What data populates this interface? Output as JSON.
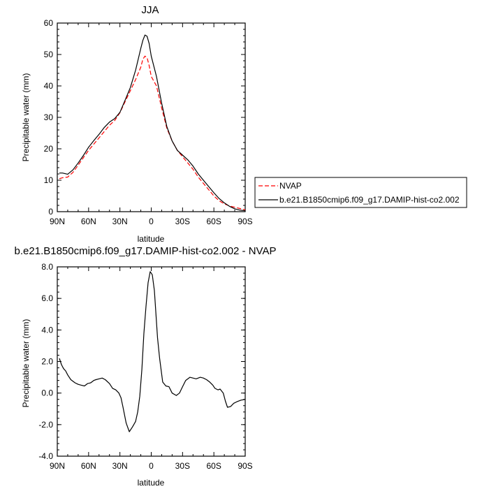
{
  "chart_data": [
    {
      "type": "line",
      "title": "JJA",
      "xlabel": "latitude",
      "ylabel": "Precipitable water (mm)",
      "xlim": [
        90,
        -90
      ],
      "ylim": [
        0,
        60
      ],
      "xticks": [
        90,
        60,
        30,
        0,
        -30,
        -60,
        -90
      ],
      "xtick_labels": [
        "90N",
        "60N",
        "30N",
        "0",
        "30S",
        "60S",
        "90S"
      ],
      "yticks": [
        0,
        10,
        20,
        30,
        40,
        50,
        60
      ],
      "ytick_labels": [
        "0",
        "10",
        "20",
        "30",
        "40",
        "50",
        "60"
      ],
      "legend_position": "right",
      "grid": false,
      "series": [
        {
          "name": "NVAP",
          "color": "#ff0000",
          "dash": "dashed",
          "x": [
            88,
            85,
            80,
            75,
            70,
            65,
            60,
            55,
            50,
            45,
            40,
            35,
            30,
            25,
            20,
            15,
            10,
            8,
            6,
            4,
            2,
            0,
            -5,
            -10,
            -15,
            -20,
            -25,
            -30,
            -35,
            -40,
            -45,
            -50,
            -55,
            -60,
            -65,
            -70,
            -75,
            -80,
            -85,
            -90
          ],
          "y": [
            10.5,
            10.8,
            11.0,
            12.5,
            14.8,
            17.2,
            19.5,
            21.5,
            23.5,
            25.5,
            27.5,
            29.0,
            31.5,
            35.0,
            38.5,
            42.0,
            46.0,
            48.5,
            49.5,
            49.0,
            46.5,
            43.0,
            40.0,
            33.0,
            26.5,
            22.5,
            19.5,
            17.5,
            15.5,
            13.5,
            11.0,
            9.0,
            7.0,
            5.0,
            3.5,
            2.5,
            1.8,
            1.4,
            1.0,
            0.6
          ]
        },
        {
          "name": "b.e21.B1850cmip6.f09_g17.DAMIP-hist-co2.002",
          "color": "#000000",
          "dash": "solid",
          "x": [
            88,
            85,
            80,
            75,
            70,
            65,
            60,
            55,
            50,
            45,
            40,
            35,
            30,
            25,
            20,
            15,
            10,
            8,
            6,
            4,
            2,
            0,
            -5,
            -10,
            -15,
            -20,
            -25,
            -30,
            -35,
            -40,
            -45,
            -50,
            -55,
            -60,
            -65,
            -70,
            -75,
            -80,
            -85,
            -90
          ],
          "y": [
            12.3,
            12.3,
            11.9,
            13.3,
            15.5,
            17.9,
            20.5,
            22.6,
            24.6,
            26.8,
            28.5,
            29.6,
            31.6,
            35.5,
            39.5,
            45.0,
            52.0,
            54.5,
            56.2,
            55.8,
            53.5,
            49.5,
            43.0,
            34.5,
            27.0,
            22.5,
            19.5,
            18.0,
            16.5,
            14.5,
            12.0,
            10.0,
            8.0,
            6.0,
            4.2,
            2.8,
            1.7,
            0.9,
            0.5,
            0.3
          ]
        }
      ]
    },
    {
      "type": "line",
      "title": "b.e21.B1850cmip6.f09_g17.DAMIP-hist-co2.002 - NVAP",
      "xlabel": "latitude",
      "ylabel": "Precipitable water (mm)",
      "xlim": [
        90,
        -90
      ],
      "ylim": [
        -4,
        8
      ],
      "xticks": [
        90,
        60,
        30,
        0,
        -30,
        -60,
        -90
      ],
      "xtick_labels": [
        "90N",
        "60N",
        "30N",
        "0",
        "30S",
        "60S",
        "90S"
      ],
      "yticks": [
        -4,
        -2,
        0,
        2,
        4,
        6,
        8
      ],
      "ytick_labels": [
        "-4.0",
        "-2.0",
        "0.0",
        "2.0",
        "4.0",
        "6.0",
        "8.0"
      ],
      "grid": false,
      "series": [
        {
          "color": "#000000",
          "dash": "solid",
          "x": [
            88,
            86,
            84,
            82,
            80,
            77,
            73,
            70,
            67,
            64,
            61,
            58,
            55,
            53,
            50,
            47,
            44,
            40,
            37,
            34,
            31,
            29,
            27,
            24,
            21,
            18,
            15,
            13,
            11,
            9,
            7,
            5,
            3,
            1,
            -1,
            -3,
            -6,
            -8,
            -11,
            -14,
            -17,
            -20,
            -24,
            -27,
            -30,
            -33,
            -37,
            -40,
            -43,
            -47,
            -50,
            -53,
            -56,
            -59,
            -61,
            -64,
            -66,
            -69,
            -71,
            -73,
            -76,
            -79,
            -82,
            -86,
            -90
          ],
          "y": [
            2.2,
            1.8,
            1.55,
            1.4,
            1.15,
            0.85,
            0.65,
            0.55,
            0.5,
            0.45,
            0.6,
            0.65,
            0.8,
            0.85,
            0.9,
            0.95,
            0.85,
            0.6,
            0.3,
            0.2,
            0.0,
            -0.3,
            -0.9,
            -1.9,
            -2.45,
            -2.15,
            -1.8,
            -1.2,
            -0.2,
            1.5,
            3.8,
            5.5,
            7.0,
            7.7,
            7.5,
            6.5,
            3.5,
            2.2,
            0.7,
            0.45,
            0.4,
            0.0,
            -0.15,
            0.0,
            0.4,
            0.8,
            1.0,
            0.95,
            0.9,
            1.0,
            0.95,
            0.85,
            0.7,
            0.5,
            0.3,
            0.2,
            0.25,
            0.0,
            -0.5,
            -0.9,
            -0.85,
            -0.65,
            -0.55,
            -0.45,
            -0.4
          ]
        }
      ]
    }
  ]
}
